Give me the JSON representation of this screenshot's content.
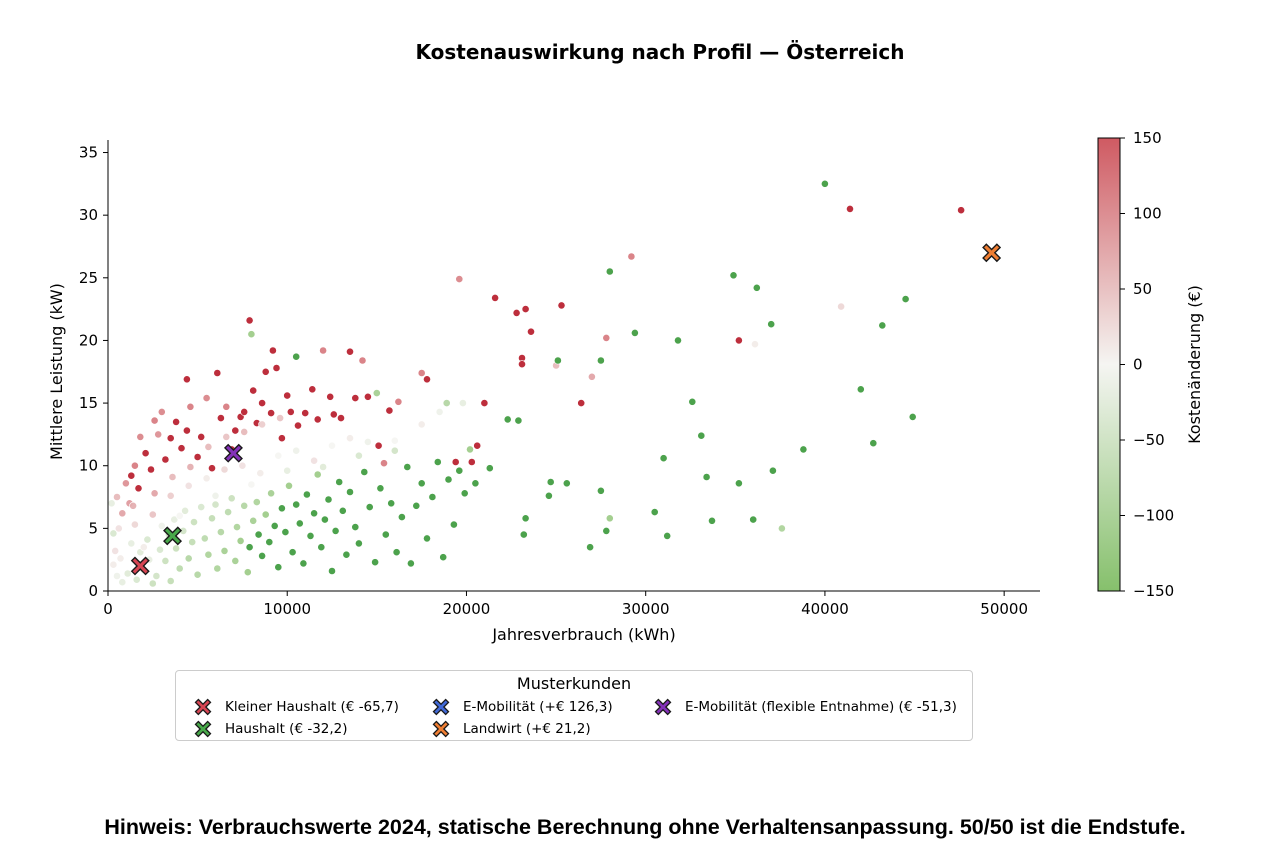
{
  "chart_data": {
    "type": "scatter",
    "title": "Kostenauswirkung nach Profil — Österreich",
    "xlabel": "Jahresverbrauch (kWh)",
    "ylabel": "Mittlere Leistung (kW)",
    "xlim": [
      0,
      52000
    ],
    "ylim": [
      0,
      36
    ],
    "xticks": [
      0,
      10000,
      20000,
      30000,
      40000,
      50000
    ],
    "yticks": [
      0,
      5,
      10,
      15,
      20,
      25,
      30,
      35
    ],
    "grid": false,
    "colorbar": {
      "label": "Kostenänderung (€)",
      "min": -150,
      "max": 150,
      "ticks": [
        150,
        100,
        50,
        0,
        -50,
        -100,
        -150
      ],
      "colors": {
        "low": "#86c06c",
        "mid": "#f5f5f2",
        "high": "#cf5a62"
      }
    },
    "scatter_points": [
      [
        200,
        7,
        -20
      ],
      [
        300,
        4.6,
        -40
      ],
      [
        500,
        7.5,
        60
      ],
      [
        800,
        6.2,
        80
      ],
      [
        1000,
        8.6,
        100
      ],
      [
        1200,
        7,
        90
      ],
      [
        1300,
        9.2,
        130
      ],
      [
        1500,
        10,
        120
      ],
      [
        1700,
        8.2,
        140
      ],
      [
        1800,
        12.3,
        110
      ],
      [
        2100,
        11,
        130
      ],
      [
        2400,
        9.7,
        140
      ],
      [
        2600,
        13.6,
        120
      ],
      [
        2800,
        12.5,
        100
      ],
      [
        3000,
        14.3,
        110
      ],
      [
        3200,
        10.5,
        150
      ],
      [
        3500,
        12.2,
        140
      ],
      [
        3800,
        13.5,
        150
      ],
      [
        4100,
        11.4,
        130
      ],
      [
        4400,
        12.8,
        150
      ],
      [
        4400,
        16.9,
        130
      ],
      [
        4600,
        14.7,
        120
      ],
      [
        5000,
        10.7,
        150
      ],
      [
        5200,
        12.3,
        140
      ],
      [
        5500,
        15.4,
        110
      ],
      [
        5800,
        9.8,
        130
      ],
      [
        6100,
        17.4,
        130
      ],
      [
        6300,
        13.8,
        150
      ],
      [
        6600,
        14.7,
        120
      ],
      [
        6900,
        11.3,
        150
      ],
      [
        7100,
        12.8,
        140
      ],
      [
        7400,
        13.9,
        140
      ],
      [
        7600,
        14.3,
        130
      ],
      [
        7900,
        21.6,
        150
      ],
      [
        8100,
        16,
        140
      ],
      [
        8300,
        13.4,
        130
      ],
      [
        8600,
        15,
        140
      ],
      [
        8800,
        17.5,
        140
      ],
      [
        9100,
        14.2,
        130
      ],
      [
        9200,
        19.2,
        140
      ],
      [
        9400,
        17.8,
        150
      ],
      [
        9700,
        12.2,
        140
      ],
      [
        10000,
        15.6,
        130
      ],
      [
        10200,
        14.3,
        140
      ],
      [
        10600,
        13.2,
        150
      ],
      [
        11000,
        14.2,
        130
      ],
      [
        11400,
        16.1,
        150
      ],
      [
        11700,
        13.7,
        130
      ],
      [
        12000,
        19.2,
        120
      ],
      [
        12400,
        15.5,
        140
      ],
      [
        12600,
        14.1,
        150
      ],
      [
        13000,
        13.8,
        150
      ],
      [
        13500,
        19.1,
        130
      ],
      [
        13800,
        15.4,
        140
      ],
      [
        14200,
        18.4,
        120
      ],
      [
        14500,
        15.5,
        140
      ],
      [
        15100,
        11.6,
        150
      ],
      [
        15400,
        10.2,
        120
      ],
      [
        15700,
        14.4,
        140
      ],
      [
        16200,
        15.1,
        120
      ],
      [
        17500,
        17.4,
        120
      ],
      [
        17800,
        16.9,
        140
      ],
      [
        19400,
        10.3,
        150
      ],
      [
        19600,
        24.9,
        110
      ],
      [
        20300,
        10.3,
        150
      ],
      [
        20600,
        11.6,
        150
      ],
      [
        21000,
        15,
        150
      ],
      [
        21600,
        23.4,
        130
      ],
      [
        22800,
        22.2,
        140
      ],
      [
        23100,
        18.6,
        140
      ],
      [
        23100,
        18.1,
        150
      ],
      [
        23300,
        22.5,
        150
      ],
      [
        23600,
        20.7,
        130
      ],
      [
        25000,
        18,
        60
      ],
      [
        25300,
        22.8,
        150
      ],
      [
        26400,
        15,
        150
      ],
      [
        27000,
        17.1,
        80
      ],
      [
        27800,
        20.2,
        120
      ],
      [
        29200,
        26.7,
        120
      ],
      [
        35200,
        20,
        150
      ],
      [
        36100,
        19.7,
        10
      ],
      [
        41400,
        30.5,
        130
      ],
      [
        47600,
        30.4,
        150
      ],
      [
        300,
        2.1,
        10
      ],
      [
        400,
        3.2,
        20
      ],
      [
        500,
        1.2,
        -10
      ],
      [
        700,
        2.6,
        10
      ],
      [
        800,
        0.7,
        -20
      ],
      [
        1100,
        1.4,
        -30
      ],
      [
        1300,
        3.8,
        -20
      ],
      [
        1600,
        0.9,
        -40
      ],
      [
        1800,
        3.1,
        -30
      ],
      [
        2000,
        1.7,
        -50
      ],
      [
        2200,
        4.1,
        -40
      ],
      [
        2300,
        2.5,
        -20
      ],
      [
        2500,
        0.6,
        -60
      ],
      [
        2700,
        1.2,
        -50
      ],
      [
        2900,
        3.3,
        -40
      ],
      [
        3000,
        5.2,
        -10
      ],
      [
        3200,
        2.4,
        -60
      ],
      [
        3400,
        4.5,
        -50
      ],
      [
        3500,
        0.8,
        -70
      ],
      [
        3700,
        5.7,
        -20
      ],
      [
        3800,
        3.4,
        -60
      ],
      [
        4000,
        1.8,
        -80
      ],
      [
        4200,
        4.8,
        -50
      ],
      [
        4300,
        6.4,
        -30
      ],
      [
        4500,
        2.6,
        -90
      ],
      [
        4700,
        3.9,
        -70
      ],
      [
        4800,
        5.5,
        -60
      ],
      [
        5000,
        1.3,
        -90
      ],
      [
        5200,
        6.7,
        -40
      ],
      [
        5400,
        4.2,
        -80
      ],
      [
        5600,
        2.9,
        -100
      ],
      [
        5800,
        5.8,
        -70
      ],
      [
        6000,
        6.9,
        -50
      ],
      [
        6100,
        1.8,
        -100
      ],
      [
        6300,
        4.7,
        -90
      ],
      [
        6500,
        3.2,
        -110
      ],
      [
        6700,
        6.3,
        -80
      ],
      [
        6900,
        7.4,
        -60
      ],
      [
        7100,
        2.4,
        -110
      ],
      [
        7200,
        5.1,
        -100
      ],
      [
        7400,
        4,
        -120
      ],
      [
        7600,
        6.8,
        -90
      ],
      [
        7800,
        1.5,
        -120
      ],
      [
        7900,
        3.5,
        -130
      ],
      [
        8100,
        5.6,
        -110
      ],
      [
        8300,
        7.1,
        -100
      ],
      [
        8400,
        4.5,
        -130
      ],
      [
        8600,
        2.8,
        -130
      ],
      [
        8800,
        6.1,
        -120
      ],
      [
        9000,
        3.9,
        -140
      ],
      [
        9100,
        7.8,
        -110
      ],
      [
        9300,
        5.2,
        -140
      ],
      [
        9500,
        1.9,
        -140
      ],
      [
        9700,
        6.6,
        -130
      ],
      [
        9900,
        4.7,
        -140
      ],
      [
        10100,
        8.4,
        -120
      ],
      [
        10300,
        3.1,
        -150
      ],
      [
        10500,
        6.9,
        -140
      ],
      [
        10700,
        5.4,
        -150
      ],
      [
        10900,
        2.2,
        -140
      ],
      [
        11100,
        7.7,
        -140
      ],
      [
        11300,
        4.4,
        -150
      ],
      [
        11500,
        6.2,
        -140
      ],
      [
        11700,
        9.3,
        -120
      ],
      [
        11900,
        3.5,
        -150
      ],
      [
        12100,
        5.7,
        -150
      ],
      [
        12300,
        7.3,
        -140
      ],
      [
        12500,
        1.6,
        -130
      ],
      [
        12700,
        4.8,
        -150
      ],
      [
        12900,
        8.7,
        -130
      ],
      [
        13100,
        6.4,
        -150
      ],
      [
        13300,
        2.9,
        -140
      ],
      [
        13500,
        7.9,
        -140
      ],
      [
        13800,
        5.1,
        -150
      ],
      [
        14000,
        3.8,
        -150
      ],
      [
        14300,
        9.5,
        -130
      ],
      [
        14600,
        6.7,
        -150
      ],
      [
        14900,
        2.3,
        -140
      ],
      [
        15200,
        8.2,
        -140
      ],
      [
        15500,
        4.5,
        -150
      ],
      [
        15800,
        7,
        -150
      ],
      [
        16100,
        3.1,
        -140
      ],
      [
        16400,
        5.9,
        -150
      ],
      [
        16700,
        9.9,
        -130
      ],
      [
        16900,
        2.2,
        -140
      ],
      [
        17200,
        6.8,
        -150
      ],
      [
        17500,
        8.6,
        -140
      ],
      [
        17800,
        4.2,
        -150
      ],
      [
        18100,
        7.5,
        -140
      ],
      [
        18400,
        10.3,
        -130
      ],
      [
        18700,
        2.7,
        -140
      ],
      [
        19000,
        8.9,
        -140
      ],
      [
        19300,
        5.3,
        -150
      ],
      [
        19600,
        9.6,
        -140
      ],
      [
        19900,
        7.8,
        -140
      ],
      [
        20200,
        11.3,
        -120
      ],
      [
        20500,
        8.6,
        -150
      ],
      [
        21300,
        9.8,
        -140
      ],
      [
        22300,
        13.7,
        -130
      ],
      [
        22900,
        13.6,
        -140
      ],
      [
        23300,
        5.8,
        -140
      ],
      [
        23200,
        4.5,
        -130
      ],
      [
        24700,
        8.7,
        -140
      ],
      [
        24600,
        7.6,
        -140
      ],
      [
        25100,
        18.4,
        -140
      ],
      [
        25600,
        8.6,
        -130
      ],
      [
        26900,
        3.5,
        -140
      ],
      [
        27500,
        8,
        -130
      ],
      [
        27500,
        18.4,
        -140
      ],
      [
        27800,
        4.8,
        -130
      ],
      [
        28000,
        5.8,
        -120
      ],
      [
        28000,
        25.5,
        -140
      ],
      [
        29400,
        20.6,
        -140
      ],
      [
        30500,
        6.3,
        -130
      ],
      [
        31000,
        10.6,
        -140
      ],
      [
        31200,
        4.4,
        -130
      ],
      [
        31800,
        20,
        -140
      ],
      [
        32600,
        15.1,
        -150
      ],
      [
        33100,
        12.4,
        -150
      ],
      [
        33400,
        9.1,
        -140
      ],
      [
        33700,
        5.6,
        -130
      ],
      [
        34900,
        25.2,
        -130
      ],
      [
        35200,
        8.6,
        -150
      ],
      [
        36000,
        5.7,
        -130
      ],
      [
        36200,
        24.2,
        -140
      ],
      [
        37000,
        21.3,
        -140
      ],
      [
        37100,
        9.6,
        -140
      ],
      [
        37600,
        5,
        -100
      ],
      [
        38800,
        11.3,
        -140
      ],
      [
        40000,
        32.5,
        -130
      ],
      [
        40900,
        22.7,
        30
      ],
      [
        42000,
        16.1,
        -150
      ],
      [
        42700,
        11.8,
        -140
      ],
      [
        43200,
        21.2,
        -140
      ],
      [
        44500,
        23.3,
        -140
      ],
      [
        44900,
        13.9,
        -140
      ],
      [
        8000,
        20.5,
        -120
      ],
      [
        10500,
        18.7,
        -130
      ],
      [
        15000,
        15.8,
        -110
      ],
      [
        18900,
        15,
        -90
      ],
      [
        1500,
        5.3,
        30
      ],
      [
        2500,
        6.1,
        50
      ],
      [
        3500,
        7.6,
        40
      ],
      [
        4500,
        8.4,
        20
      ],
      [
        5500,
        9,
        10
      ],
      [
        6500,
        9.7,
        30
      ],
      [
        7500,
        10,
        20
      ],
      [
        8500,
        9.4,
        10
      ],
      [
        9500,
        10.8,
        0
      ],
      [
        10500,
        11.2,
        -10
      ],
      [
        11500,
        10.4,
        20
      ],
      [
        12500,
        11.6,
        0
      ],
      [
        13500,
        12.2,
        10
      ],
      [
        14500,
        11.9,
        -10
      ],
      [
        16000,
        12,
        0
      ],
      [
        17500,
        13.3,
        10
      ],
      [
        18500,
        14.3,
        -10
      ],
      [
        19800,
        15,
        -20
      ],
      [
        2000,
        3.5,
        10
      ],
      [
        4000,
        6,
        0
      ],
      [
        6000,
        7.6,
        -10
      ],
      [
        8000,
        8.5,
        0
      ],
      [
        10000,
        9.6,
        -20
      ],
      [
        12000,
        9.9,
        -30
      ],
      [
        14000,
        10.8,
        -40
      ],
      [
        16000,
        11.2,
        -50
      ],
      [
        600,
        5,
        20
      ],
      [
        1400,
        6.8,
        70
      ],
      [
        2600,
        7.8,
        80
      ],
      [
        3600,
        9.1,
        60
      ],
      [
        4600,
        9.9,
        70
      ],
      [
        5600,
        11.5,
        60
      ],
      [
        6600,
        12.3,
        50
      ],
      [
        7600,
        12.7,
        60
      ],
      [
        8600,
        13.3,
        40
      ],
      [
        9600,
        13.8,
        50
      ]
    ],
    "legend": {
      "title": "Musterkunden",
      "placement": "below plot",
      "entries": [
        {
          "label": "Kleiner Haushalt (€ -65,7)",
          "color": "#d64553",
          "x": 1800,
          "y": 2.0
        },
        {
          "label": "Haushalt (€ -32,2)",
          "color": "#48a84a",
          "x": 3600,
          "y": 4.4
        },
        {
          "label": "E-Mobilität (+€ 126,3)",
          "color": "#4169d6",
          "x": null,
          "y": null
        },
        {
          "label": "Landwirt (+€ 21,2)",
          "color": "#ef7e33",
          "x": 49300,
          "y": 27.0
        },
        {
          "label": "E-Mobilität (flexible Entnahme) (€ -51,3)",
          "color": "#8431b8",
          "x": 7000,
          "y": 11.0
        }
      ]
    }
  },
  "footnote": "Hinweis: Verbrauchswerte 2024, statische Berechnung ohne Verhaltensanpassung. 50/50 ist die Endstufe."
}
